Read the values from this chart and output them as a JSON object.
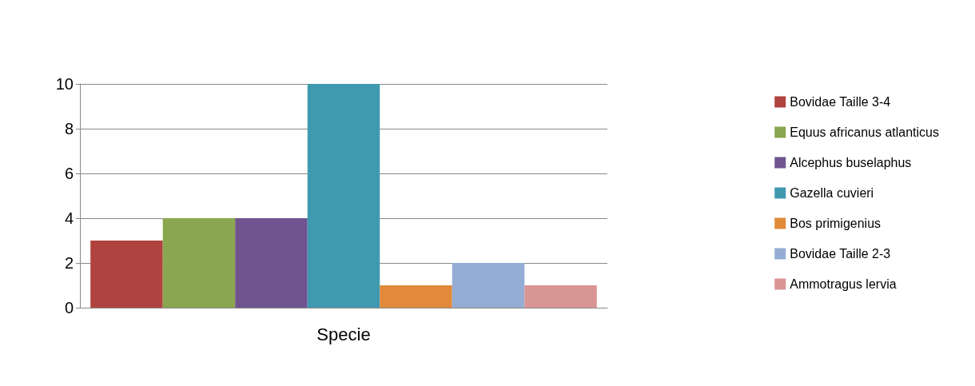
{
  "chart_data": {
    "type": "bar",
    "categories": [
      "Specie"
    ],
    "series": [
      {
        "name": "Bovidae Taille 3-4",
        "color": "#b0433f",
        "values": [
          3
        ]
      },
      {
        "name": "Equus africanus atlanticus",
        "color": "#8aa64e",
        "values": [
          4
        ]
      },
      {
        "name": "Alcephus buselaphus",
        "color": "#6f5490",
        "values": [
          4
        ]
      },
      {
        "name": "Gazella cuvieri",
        "color": "#3f9ab0",
        "values": [
          10
        ]
      },
      {
        "name": "Bos primigenius",
        "color": "#e08a3a",
        "values": [
          1
        ]
      },
      {
        "name": "Bovidae Taille 2-3",
        "color": "#95acd5",
        "values": [
          2
        ]
      },
      {
        "name": "Ammotragus lervia",
        "color": "#d99594",
        "values": [
          1
        ]
      }
    ],
    "ylim": [
      0,
      10
    ],
    "yticks": [
      0,
      2,
      4,
      6,
      8,
      10
    ],
    "grid": "y",
    "legend": "right"
  }
}
